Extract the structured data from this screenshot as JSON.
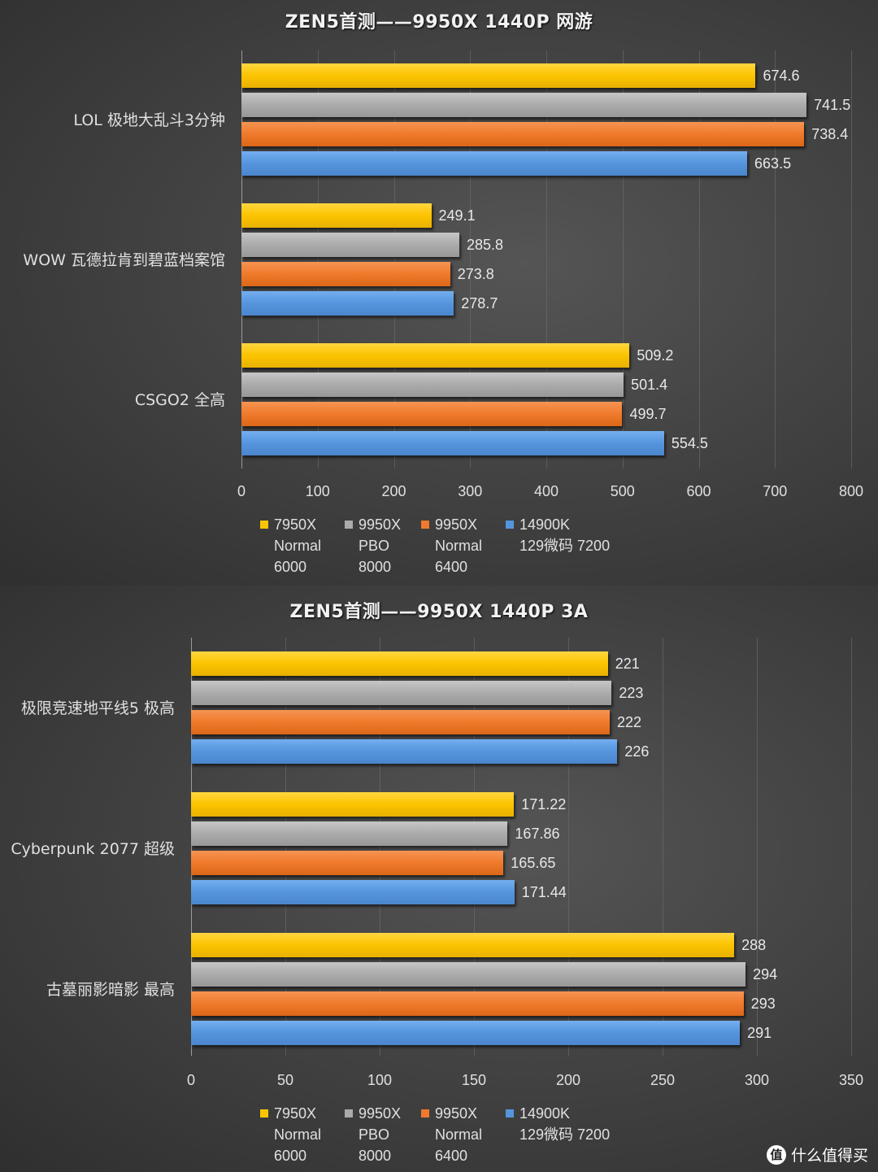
{
  "chart_data": [
    {
      "type": "bar",
      "orientation": "horizontal",
      "title": "ZEN5首测——9950X 1440P 网游",
      "categories": [
        "LOL 极地大乱斗3分钟",
        "WOW 瓦德拉肯到碧蓝档案馆",
        "CSGO2 全高"
      ],
      "series": [
        {
          "name": "7950X Normal 6000",
          "color": "#fcc400",
          "values": [
            674.6,
            249.1,
            509.2
          ]
        },
        {
          "name": "9950X PBO 8000",
          "color": "#ababab",
          "values": [
            741.5,
            285.8,
            501.4
          ]
        },
        {
          "name": "9950X Normal 6400",
          "color": "#f07a2b",
          "values": [
            738.4,
            273.8,
            499.7
          ]
        },
        {
          "name": "14900K 129微码 7200",
          "color": "#5595dd",
          "values": [
            663.5,
            278.7,
            554.5
          ]
        }
      ],
      "xlabel": "",
      "ylabel": "",
      "xlim": [
        0,
        800
      ],
      "xticks": [
        0,
        100,
        200,
        300,
        400,
        500,
        600,
        700,
        800
      ],
      "grid": true,
      "legend_position": "bottom"
    },
    {
      "type": "bar",
      "orientation": "horizontal",
      "title": "ZEN5首测——9950X 1440P 3A",
      "categories": [
        "极限竞速地平线5 极高",
        "Cyberpunk 2077 超级",
        "古墓丽影暗影 最高"
      ],
      "series": [
        {
          "name": "7950X Normal 6000",
          "color": "#fcc400",
          "values": [
            221,
            171.22,
            288
          ]
        },
        {
          "name": "9950X PBO 8000",
          "color": "#ababab",
          "values": [
            223,
            167.86,
            294
          ]
        },
        {
          "name": "9950X Normal 6400",
          "color": "#f07a2b",
          "values": [
            222,
            165.65,
            293
          ]
        },
        {
          "name": "14900K 129微码 7200",
          "color": "#5595dd",
          "values": [
            226,
            171.44,
            291
          ]
        }
      ],
      "xlabel": "",
      "ylabel": "",
      "xlim": [
        0,
        350
      ],
      "xticks": [
        0,
        50,
        100,
        150,
        200,
        250,
        300,
        350
      ],
      "grid": true,
      "legend_position": "bottom"
    }
  ],
  "charts": [
    {
      "title": "ZEN5首测——9950X 1440P 网游",
      "categories": [
        "LOL 极地大乱斗3分钟",
        "WOW 瓦德拉肯到碧蓝档案馆",
        "CSGO2 全高"
      ],
      "value_labels": [
        [
          "674.6",
          "741.5",
          "738.4",
          "663.5"
        ],
        [
          "249.1",
          "285.8",
          "273.8",
          "278.7"
        ],
        [
          "509.2",
          "501.4",
          "499.7",
          "554.5"
        ]
      ],
      "ticks": [
        "0",
        "100",
        "200",
        "300",
        "400",
        "500",
        "600",
        "700",
        "800"
      ]
    },
    {
      "title": "ZEN5首测——9950X 1440P 3A",
      "categories": [
        "极限竞速地平线5 极高",
        "Cyberpunk 2077 超级",
        "古墓丽影暗影 最高"
      ],
      "value_labels": [
        [
          "221",
          "223",
          "222",
          "226"
        ],
        [
          "171.22",
          "167.86",
          "165.65",
          "171.44"
        ],
        [
          "288",
          "294",
          "293",
          "291"
        ]
      ],
      "ticks": [
        "0",
        "50",
        "100",
        "150",
        "200",
        "250",
        "300",
        "350"
      ]
    }
  ],
  "legend": [
    {
      "label": "7950X\nNormal\n6000",
      "color": "#fcc400"
    },
    {
      "label": "9950X\nPBO\n8000",
      "color": "#ababab"
    },
    {
      "label": "9950X\nNormal\n6400",
      "color": "#f07a2b"
    },
    {
      "label": "14900K\n129微码 7200",
      "color": "#5595dd"
    }
  ],
  "watermark": {
    "icon": "值",
    "text": "什么值得买"
  }
}
